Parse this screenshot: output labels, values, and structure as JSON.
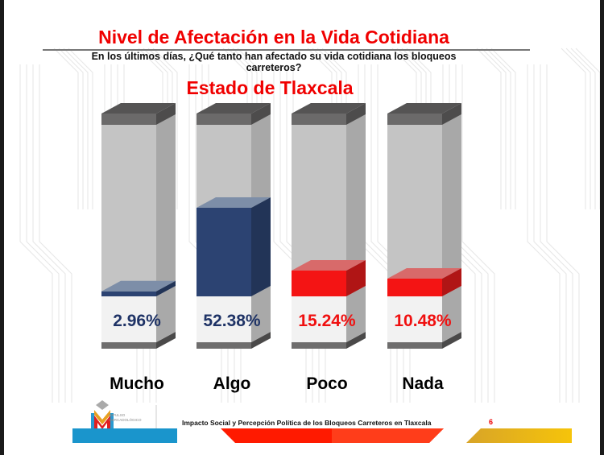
{
  "slide": {
    "title": "Nivel de Afectación en la Vida Cotidiana",
    "question": "En los últimos días, ¿Qué tanto han afectado su vida cotidiana los bloqueos carreteros?",
    "subtitle": "Estado de Tlaxcala",
    "footer": "Impacto Social y Percepción Política de los Bloqueos Carreteros en Tlaxcala",
    "page_number": "6",
    "logo_text_1": "IMPULSO",
    "logo_text_2": "MERCADOLÓGICO"
  },
  "colors": {
    "blue": "#2c4372",
    "red": "#f41414",
    "cap": "#6b6a6a",
    "shell": "#c4c4c4"
  },
  "chart_data": {
    "type": "bar",
    "title": "Nivel de Afectación en la Vida Cotidiana",
    "subtitle": "Estado de Tlaxcala",
    "categories": [
      "Mucho",
      "Algo",
      "Poco",
      "Nada"
    ],
    "values": [
      2.96,
      52.38,
      15.24,
      10.48
    ],
    "labels": [
      "2.96%",
      "52.38%",
      "15.24%",
      "10.48%"
    ],
    "series_colors": [
      "blue",
      "blue",
      "red",
      "red"
    ],
    "ylim": [
      0,
      100
    ],
    "xlabel": "",
    "ylabel": "",
    "grid": false
  }
}
